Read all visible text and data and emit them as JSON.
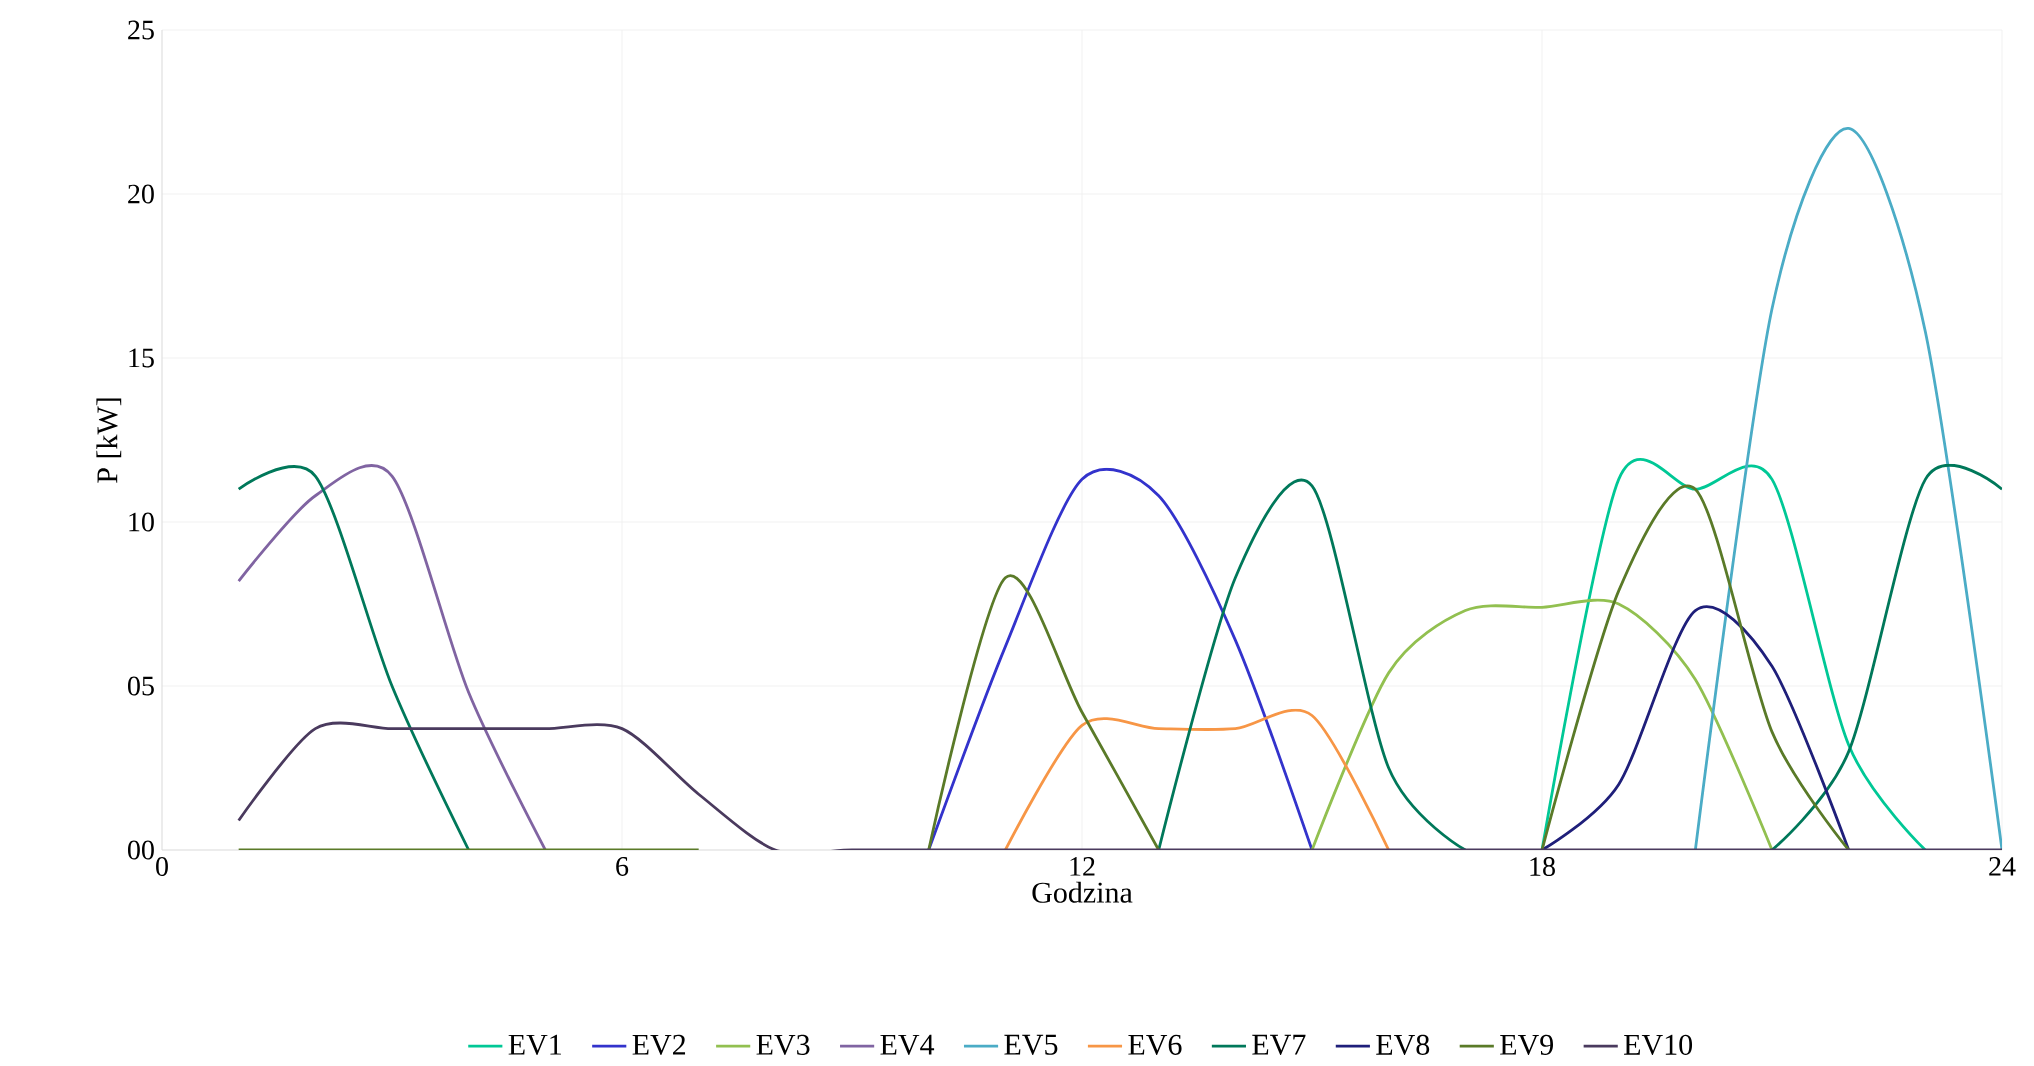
{
  "chart_data": {
    "type": "line",
    "xlabel": "Godzina",
    "ylabel": "P [kW]",
    "x": [
      1,
      2,
      3,
      4,
      5,
      6,
      7,
      8,
      9,
      10,
      11,
      12,
      13,
      14,
      15,
      16,
      17,
      18,
      19,
      20,
      21,
      22,
      23,
      24
    ],
    "xlim": [
      0,
      24
    ],
    "xticks": [
      0,
      6,
      12,
      18,
      24
    ],
    "ylim": [
      0,
      25
    ],
    "yticks": [
      {
        "value": 0,
        "label": "00"
      },
      {
        "value": 5,
        "label": "05"
      },
      10,
      15,
      20,
      25
    ],
    "grid": true,
    "legend": "bottom",
    "series": [
      {
        "name": "EV1",
        "color": "#00c896",
        "values": [
          null,
          null,
          null,
          null,
          null,
          null,
          null,
          null,
          null,
          null,
          null,
          null,
          null,
          null,
          null,
          null,
          null,
          0,
          11.3,
          11.0,
          11.3,
          3.2,
          0,
          null
        ]
      },
      {
        "name": "EV2",
        "color": "#3333cc",
        "values": [
          null,
          null,
          null,
          null,
          null,
          null,
          null,
          null,
          null,
          0,
          6.2,
          11.3,
          10.8,
          6.4,
          0,
          null,
          null,
          null,
          null,
          null,
          null,
          null,
          null,
          null
        ]
      },
      {
        "name": "EV3",
        "color": "#92c050",
        "values": [
          null,
          null,
          null,
          null,
          null,
          null,
          null,
          null,
          null,
          null,
          null,
          null,
          null,
          null,
          0,
          5.4,
          7.3,
          7.4,
          7.5,
          5.2,
          0,
          null,
          null,
          null
        ]
      },
      {
        "name": "EV4",
        "color": "#8064a2",
        "values": [
          8.2,
          10.8,
          11.4,
          4.8,
          0,
          null,
          null,
          null,
          null,
          null,
          null,
          null,
          null,
          null,
          null,
          null,
          null,
          null,
          null,
          null,
          null,
          null,
          null,
          null
        ]
      },
      {
        "name": "EV5",
        "color": "#4bacc6",
        "values": [
          null,
          null,
          null,
          null,
          null,
          null,
          null,
          null,
          null,
          null,
          null,
          null,
          null,
          null,
          null,
          null,
          null,
          null,
          null,
          0,
          16.5,
          22.0,
          15.8,
          0
        ]
      },
      {
        "name": "EV6",
        "color": "#f79646",
        "values": [
          null,
          null,
          null,
          null,
          null,
          null,
          null,
          null,
          null,
          null,
          0,
          3.8,
          3.7,
          3.7,
          4.1,
          0,
          null,
          null,
          null,
          null,
          null,
          null,
          null,
          null
        ]
      },
      {
        "name": "EV7",
        "color": "#00785a",
        "values": [
          11.0,
          11.4,
          5.0,
          0,
          null,
          null,
          null,
          null,
          null,
          null,
          null,
          null,
          0,
          8.3,
          11.1,
          2.5,
          0,
          null,
          null,
          null,
          0,
          3.0,
          11.3,
          11.0
        ]
      },
      {
        "name": "EV8",
        "color": "#1f1f7a",
        "values": [
          null,
          null,
          null,
          null,
          null,
          null,
          null,
          null,
          null,
          null,
          null,
          null,
          null,
          null,
          null,
          null,
          null,
          0,
          2.0,
          7.3,
          5.6,
          0,
          null,
          null
        ]
      },
      {
        "name": "EV9",
        "color": "#5a7a28",
        "values": [
          0,
          0,
          0,
          0,
          0,
          0,
          0,
          null,
          null,
          0,
          8.3,
          4.2,
          0,
          null,
          null,
          null,
          null,
          0,
          7.9,
          11.0,
          3.6,
          0,
          null,
          null
        ]
      },
      {
        "name": "EV10",
        "color": "#4a3a5e",
        "values": [
          0.9,
          3.7,
          3.7,
          3.7,
          3.7,
          3.7,
          1.7,
          0,
          0,
          0,
          0,
          0,
          0,
          0,
          0,
          0,
          0,
          0,
          0,
          0,
          0,
          0,
          0,
          0
        ]
      }
    ]
  }
}
